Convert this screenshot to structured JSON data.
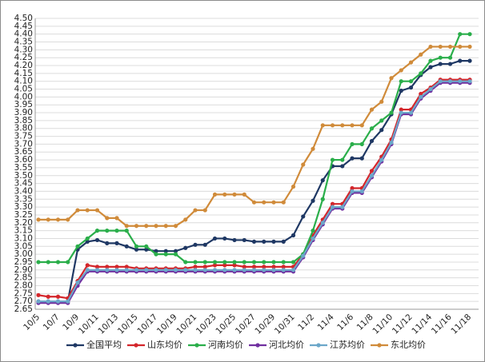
{
  "chart_data": {
    "type": "line",
    "categories": [
      "10/5",
      null,
      "10/7",
      null,
      "10/9",
      null,
      "10/11",
      null,
      "10/13",
      null,
      "10/15",
      null,
      "10/17",
      null,
      "10/19",
      null,
      "10/21",
      null,
      "10/23",
      null,
      "10/25",
      null,
      "10/27",
      null,
      "10/29",
      null,
      "10/31",
      null,
      "11/2",
      null,
      "11/4",
      null,
      "11/6",
      null,
      "11/8",
      null,
      "11/10",
      null,
      "11/12",
      null,
      "11/14",
      null,
      "11/16",
      null,
      "11/18"
    ],
    "series": [
      {
        "name": "全国平均",
        "color": "#1f3864",
        "values": [
          2.7,
          2.7,
          2.7,
          2.7,
          3.03,
          3.08,
          3.09,
          3.07,
          3.07,
          3.05,
          3.03,
          3.03,
          3.02,
          3.02,
          3.02,
          3.04,
          3.06,
          3.06,
          3.1,
          3.1,
          3.09,
          3.09,
          3.08,
          3.08,
          3.08,
          3.08,
          3.12,
          3.24,
          3.34,
          3.47,
          3.56,
          3.56,
          3.61,
          3.61,
          3.72,
          3.79,
          3.89,
          4.04,
          4.06,
          4.14,
          4.19,
          4.21,
          4.21,
          4.23,
          4.23
        ]
      },
      {
        "name": "山东均价",
        "color": "#d4262b",
        "values": [
          2.74,
          2.73,
          2.73,
          2.72,
          2.83,
          2.93,
          2.92,
          2.92,
          2.92,
          2.92,
          2.91,
          2.91,
          2.91,
          2.91,
          2.91,
          2.91,
          2.92,
          2.92,
          2.93,
          2.93,
          2.93,
          2.92,
          2.92,
          2.92,
          2.92,
          2.92,
          2.92,
          3.0,
          3.12,
          3.22,
          3.32,
          3.32,
          3.42,
          3.42,
          3.53,
          3.62,
          3.73,
          3.92,
          3.92,
          4.02,
          4.06,
          4.11,
          4.11,
          4.11,
          4.11
        ]
      },
      {
        "name": "河南均价",
        "color": "#2aae4a",
        "values": [
          2.95,
          2.95,
          2.95,
          2.95,
          3.05,
          3.1,
          3.15,
          3.15,
          3.15,
          3.15,
          3.05,
          3.05,
          3.0,
          3.0,
          3.0,
          2.95,
          2.95,
          2.95,
          2.95,
          2.95,
          2.95,
          2.95,
          2.95,
          2.95,
          2.95,
          2.95,
          2.95,
          3.0,
          3.15,
          3.35,
          3.6,
          3.6,
          3.7,
          3.7,
          3.8,
          3.85,
          3.9,
          4.1,
          4.1,
          4.15,
          4.23,
          4.25,
          4.25,
          4.4,
          4.4
        ]
      },
      {
        "name": "河北均价",
        "color": "#7030a0",
        "values": [
          2.69,
          2.69,
          2.69,
          2.69,
          2.8,
          2.89,
          2.89,
          2.89,
          2.89,
          2.89,
          2.89,
          2.89,
          2.89,
          2.89,
          2.89,
          2.89,
          2.89,
          2.89,
          2.89,
          2.89,
          2.89,
          2.89,
          2.89,
          2.89,
          2.89,
          2.89,
          2.89,
          2.98,
          3.09,
          3.19,
          3.29,
          3.29,
          3.39,
          3.39,
          3.49,
          3.59,
          3.7,
          3.89,
          3.89,
          3.99,
          4.04,
          4.09,
          4.09,
          4.09,
          4.09
        ]
      },
      {
        "name": "江苏均价",
        "color": "#6ba7c9",
        "values": [
          2.7,
          2.7,
          2.7,
          2.7,
          2.82,
          2.9,
          2.9,
          2.9,
          2.9,
          2.9,
          2.9,
          2.9,
          2.9,
          2.9,
          2.9,
          2.9,
          2.9,
          2.9,
          2.9,
          2.9,
          2.9,
          2.9,
          2.9,
          2.9,
          2.9,
          2.9,
          2.9,
          2.99,
          3.1,
          3.2,
          3.3,
          3.3,
          3.4,
          3.4,
          3.5,
          3.6,
          3.71,
          3.9,
          3.9,
          4.0,
          4.05,
          4.1,
          4.1,
          4.1,
          4.1
        ]
      },
      {
        "name": "东北均价",
        "color": "#d08b3a",
        "values": [
          3.22,
          3.22,
          3.22,
          3.22,
          3.28,
          3.28,
          3.28,
          3.23,
          3.23,
          3.18,
          3.18,
          3.18,
          3.18,
          3.18,
          3.18,
          3.22,
          3.28,
          3.28,
          3.38,
          3.38,
          3.38,
          3.38,
          3.33,
          3.33,
          3.33,
          3.33,
          3.43,
          3.57,
          3.67,
          3.82,
          3.82,
          3.82,
          3.82,
          3.82,
          3.92,
          3.97,
          4.12,
          4.17,
          4.22,
          4.27,
          4.32,
          4.32,
          4.32,
          4.32,
          4.32
        ]
      }
    ],
    "ylim": [
      2.65,
      4.5
    ],
    "yticks": [
      2.65,
      {
        "value": 2.7,
        "label": "2.70"
      },
      2.75,
      {
        "value": 2.8,
        "label": "2.80"
      },
      2.85,
      {
        "value": 2.9,
        "label": "2.90"
      },
      2.95,
      {
        "value": 3.0,
        "label": "3.00"
      },
      3.05,
      {
        "value": 3.1,
        "label": "3.10"
      },
      3.15,
      {
        "value": 3.2,
        "label": "3.20"
      },
      3.25,
      {
        "value": 3.3,
        "label": "3.30"
      },
      3.35,
      {
        "value": 3.4,
        "label": "3.40"
      },
      3.45,
      {
        "value": 3.5,
        "label": "3.50"
      },
      3.55,
      {
        "value": 3.6,
        "label": "3.60"
      },
      3.65,
      {
        "value": 3.7,
        "label": "3.70"
      },
      3.75,
      {
        "value": 3.8,
        "label": "3.80"
      },
      3.85,
      {
        "value": 3.9,
        "label": "3.90"
      },
      3.95,
      {
        "value": 4.0,
        "label": "4.00"
      },
      4.05,
      {
        "value": 4.1,
        "label": "4.10"
      },
      4.15,
      {
        "value": 4.2,
        "label": "4.20"
      },
      4.25,
      {
        "value": 4.3,
        "label": "4.30"
      },
      4.35,
      {
        "value": 4.4,
        "label": "4.40"
      },
      4.45,
      {
        "value": 4.5,
        "label": "4.50"
      }
    ],
    "grid": true,
    "legend": "bottom"
  }
}
